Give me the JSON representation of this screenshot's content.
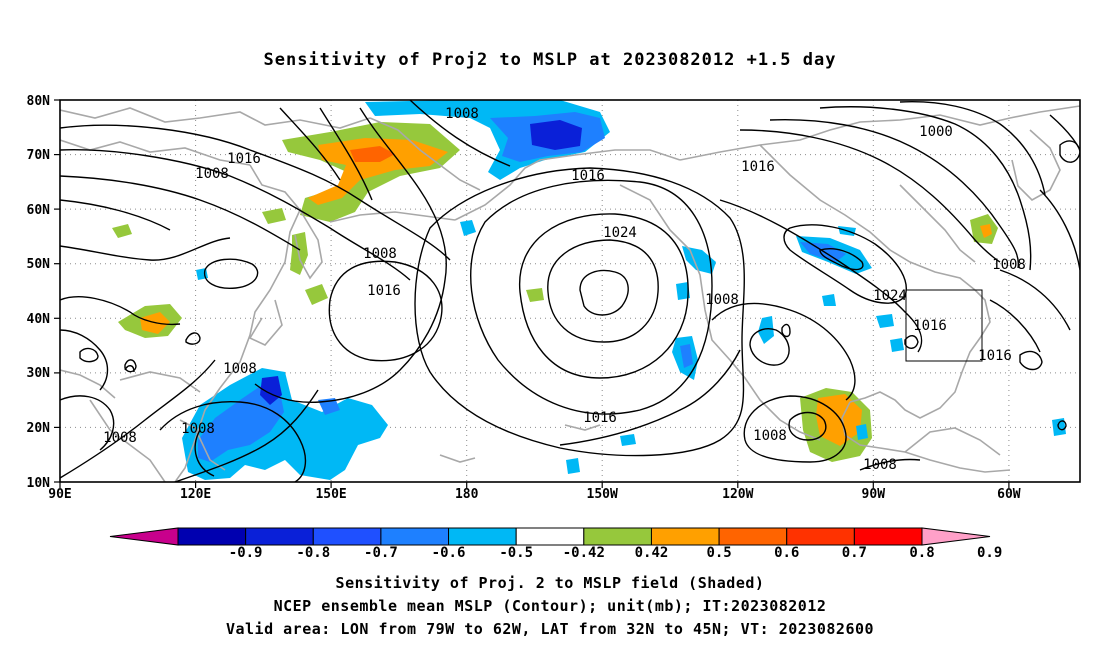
{
  "title": "Sensitivity of Proj2 to MSLP at 2023082012 +1.5 day",
  "map": {
    "lon_range": [
      "90E",
      "40W"
    ],
    "lat_range": [
      "10N",
      "80N"
    ],
    "lat_ticks": [
      "80N",
      "70N",
      "60N",
      "50N",
      "40N",
      "30N",
      "20N",
      "10N"
    ],
    "lon_ticks": [
      "90E",
      "120E",
      "150E",
      "180",
      "150W",
      "120W",
      "90W",
      "60W"
    ],
    "grid": "dotted",
    "coastline_color": "#a8a8a8",
    "contour_color": "#000000",
    "contour_labels": [
      "1008",
      "1000",
      "1016",
      "1016",
      "1008",
      "1016",
      "1024",
      "1008",
      "1016",
      "1008",
      "1024",
      "1016",
      "1016",
      "1008",
      "1008",
      "1008",
      "1008",
      "1016",
      "1008"
    ],
    "verification_box": {
      "lon": [
        "79W",
        "62W"
      ],
      "lat": [
        "32N",
        "45N"
      ]
    }
  },
  "colorbar": {
    "labels": [
      "-0.9",
      "-0.8",
      "-0.7",
      "-0.6",
      "-0.5",
      "-0.42",
      "0.42",
      "0.5",
      "0.6",
      "0.7",
      "0.8",
      "0.9"
    ],
    "colors": [
      "#c8008c",
      "#0000b0",
      "#0a20d8",
      "#1f50ff",
      "#1e80ff",
      "#00b8f5",
      "#ffffff",
      "#96c83c",
      "#ffa000",
      "#ff6400",
      "#ff3200",
      "#ff0000",
      "#ffa0c8"
    ]
  },
  "captions": {
    "line1": "Sensitivity of Proj. 2 to MSLP field (Shaded)",
    "line2": "NCEP ensemble mean MSLP (Contour); unit(mb); IT:2023082012",
    "line3": "Valid area: LON from 79W to 62W, LAT from 32N to 45N; VT: 2023082600"
  }
}
